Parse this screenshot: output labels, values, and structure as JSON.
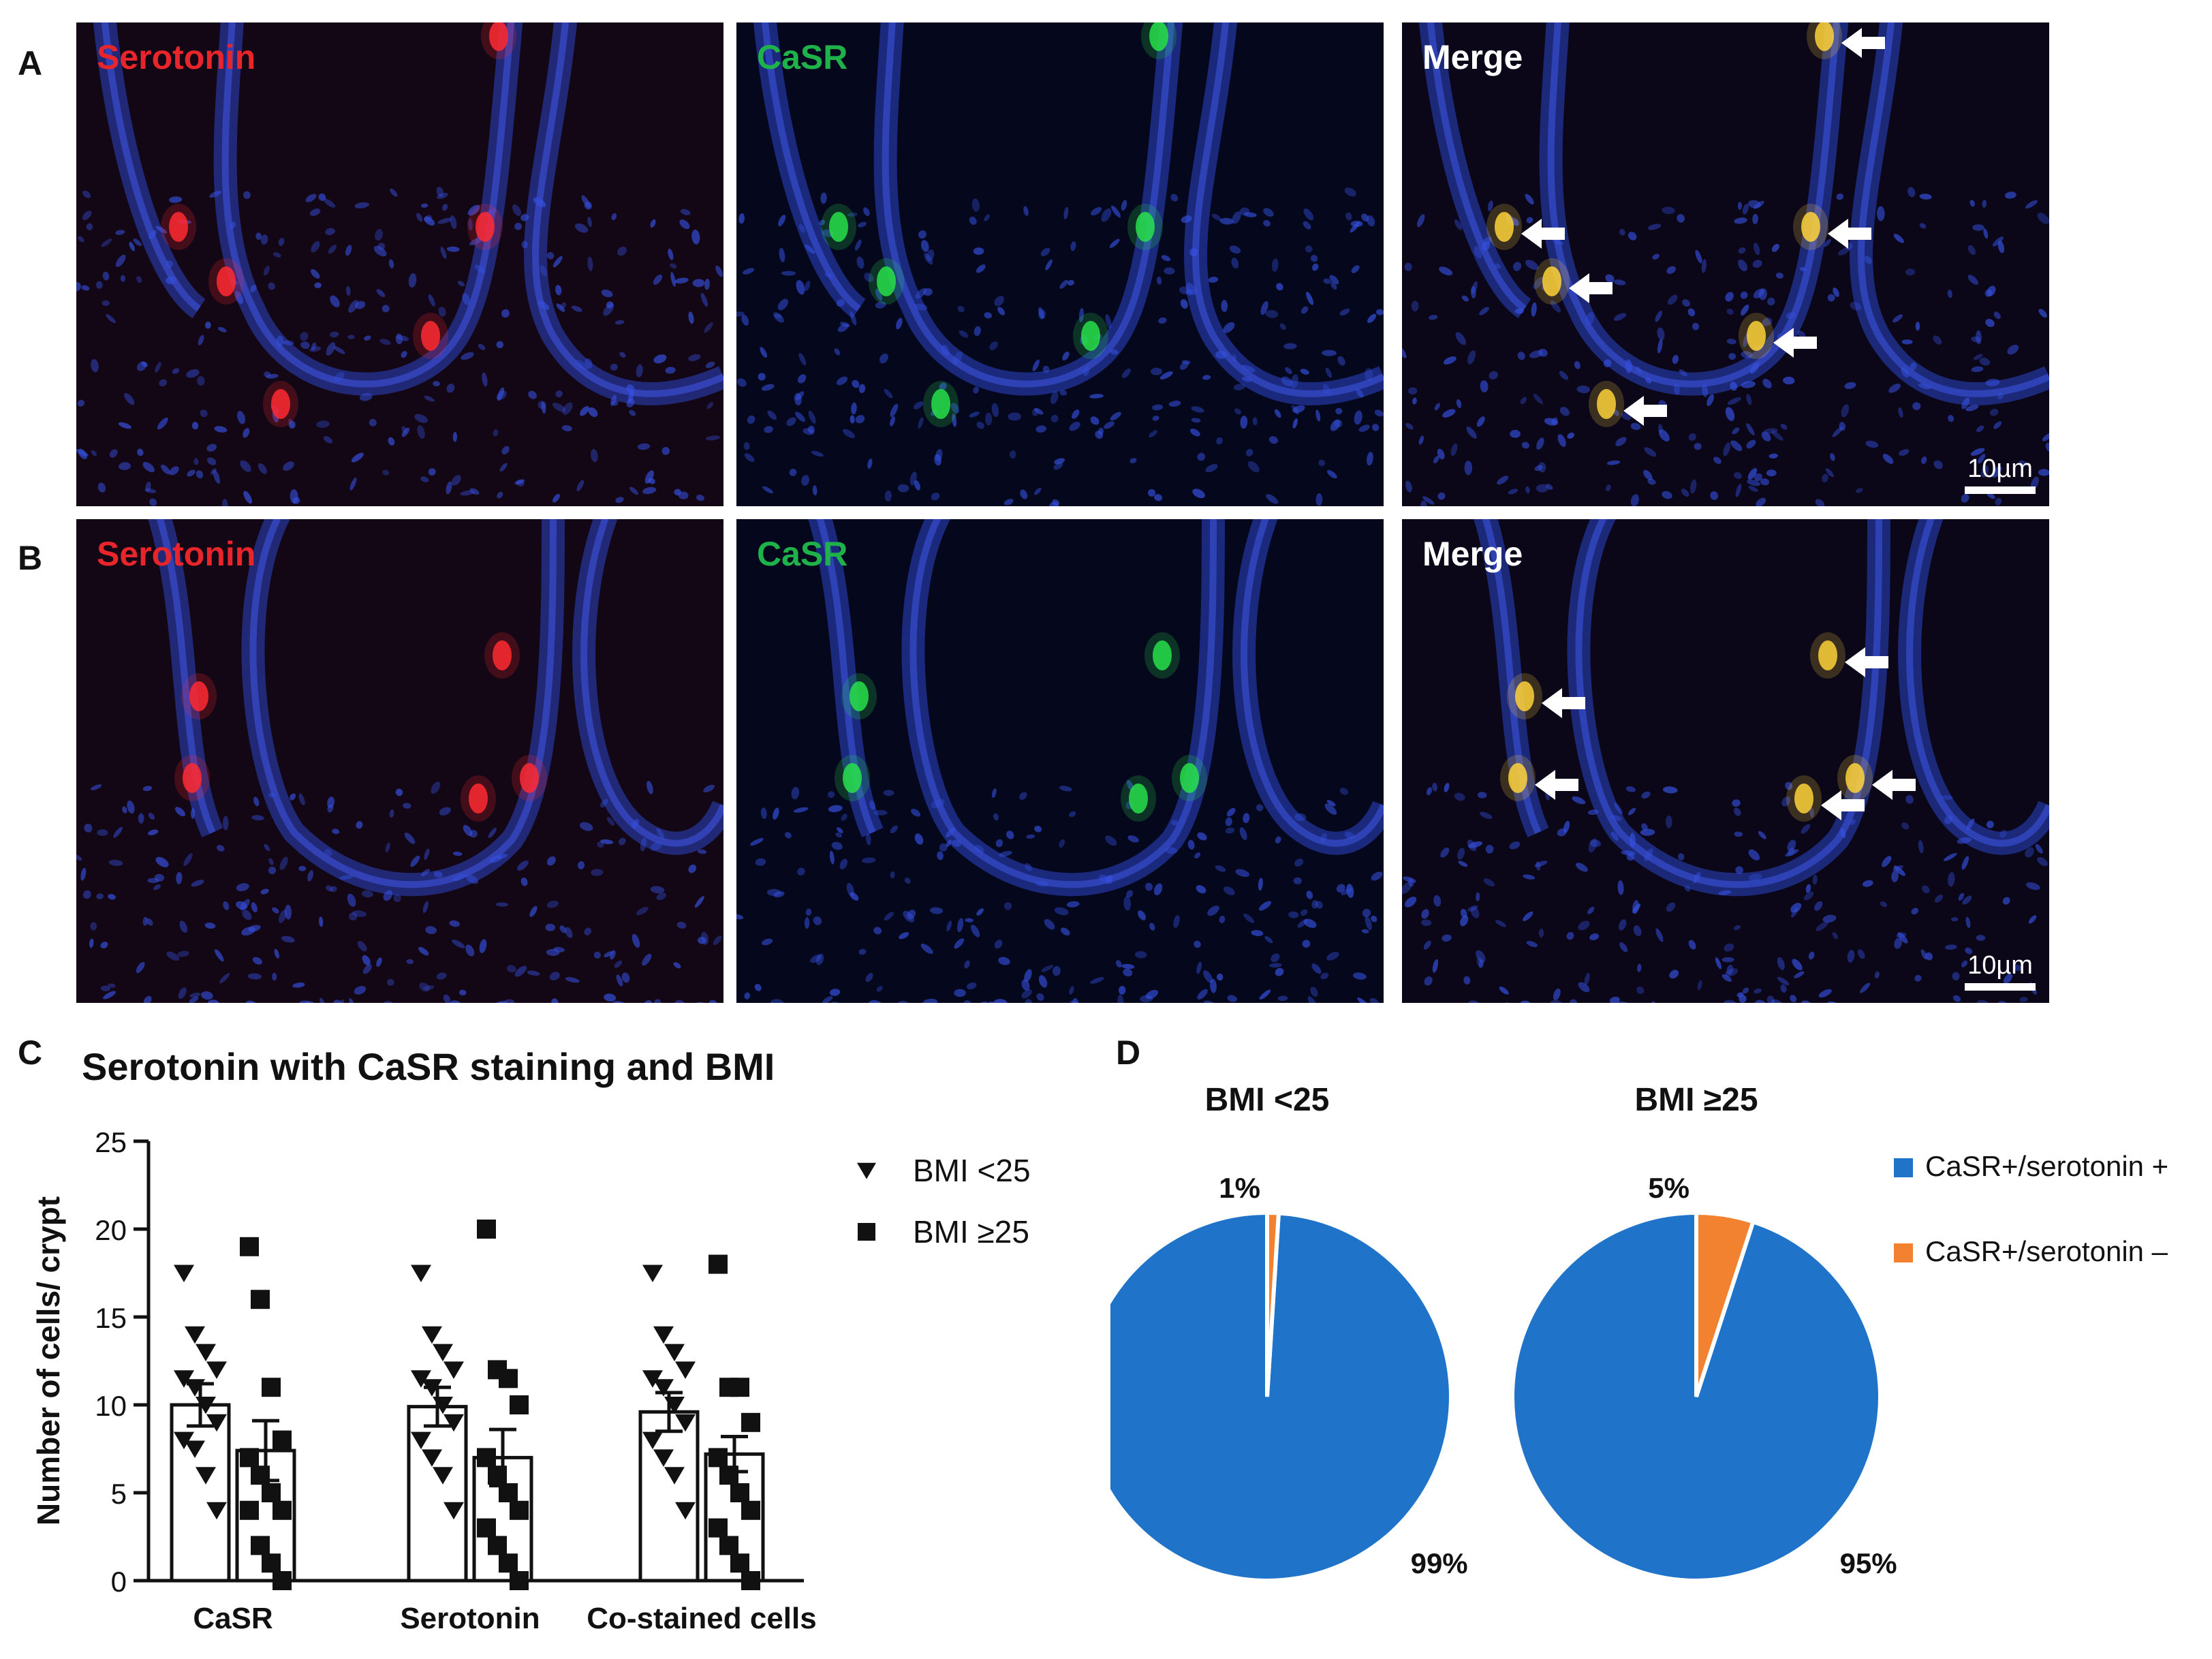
{
  "figure": {
    "panel_letters": [
      "A",
      "B",
      "C",
      "D"
    ],
    "micrographs": {
      "row_a": [
        {
          "title": "Serotonin",
          "color": "#e8252a"
        },
        {
          "title": "CaSR",
          "color": "#1fb24a"
        },
        {
          "title": "Merge",
          "color": "#ffffff"
        }
      ],
      "row_b": [
        {
          "title": "Serotonin",
          "color": "#e8252a"
        },
        {
          "title": "CaSR",
          "color": "#1fb24a"
        },
        {
          "title": "Merge",
          "color": "#ffffff"
        }
      ],
      "scale_bar": "10µm"
    }
  },
  "chart_data": [
    {
      "type": "scatter",
      "title": "Serotonin with CaSR staining and BMI",
      "ylabel": "Number of cells/ crypt",
      "ylim": [
        0,
        25
      ],
      "yticks": [
        0,
        5,
        10,
        15,
        20,
        25
      ],
      "categories": [
        "CaSR",
        "Serotonin",
        "Co-stained cells"
      ],
      "legend": [
        {
          "name": "BMI <25",
          "marker": "triangle-down"
        },
        {
          "name": "BMI ≥25",
          "marker": "square"
        }
      ],
      "bars": {
        "BMI <25": {
          "mean": [
            10.0,
            9.9,
            9.6
          ],
          "sem": [
            1.2,
            1.1,
            1.1
          ]
        },
        "BMI ≥25": {
          "mean": [
            7.4,
            7.0,
            7.2
          ],
          "sem": [
            1.7,
            1.6,
            1.0
          ]
        }
      },
      "points": {
        "BMI <25": [
          [
            17.5,
            14,
            13,
            12,
            11.5,
            11,
            10,
            9,
            8,
            7.5,
            6,
            4
          ],
          [
            17.5,
            14,
            13,
            12,
            11.5,
            11,
            10,
            9,
            8,
            7,
            6,
            4
          ],
          [
            17.5,
            14,
            13,
            12,
            11.5,
            11,
            10,
            9,
            8,
            7,
            6,
            4
          ]
        ],
        "BMI ≥25": [
          [
            19,
            16,
            11,
            8,
            7,
            6,
            5,
            4,
            4,
            2,
            1,
            0
          ],
          [
            20,
            12,
            11.5,
            10,
            7,
            6,
            5,
            4,
            3,
            2,
            1,
            0
          ],
          [
            18,
            11,
            11,
            9,
            7,
            6,
            5,
            4,
            3,
            2,
            1,
            0
          ]
        ]
      }
    },
    {
      "type": "pie",
      "slices_legend": [
        {
          "name": "CaSR+/serotonin +",
          "color": "#1f74c9"
        },
        {
          "name": "CaSR+/serotonin –",
          "color": "#f28230"
        }
      ],
      "pies": [
        {
          "title": "BMI <25",
          "values": [
            99,
            1
          ],
          "labels": [
            "99%",
            "1%"
          ]
        },
        {
          "title": "BMI ≥25",
          "values": [
            95,
            5
          ],
          "labels": [
            "95%",
            "5%"
          ]
        }
      ]
    }
  ]
}
